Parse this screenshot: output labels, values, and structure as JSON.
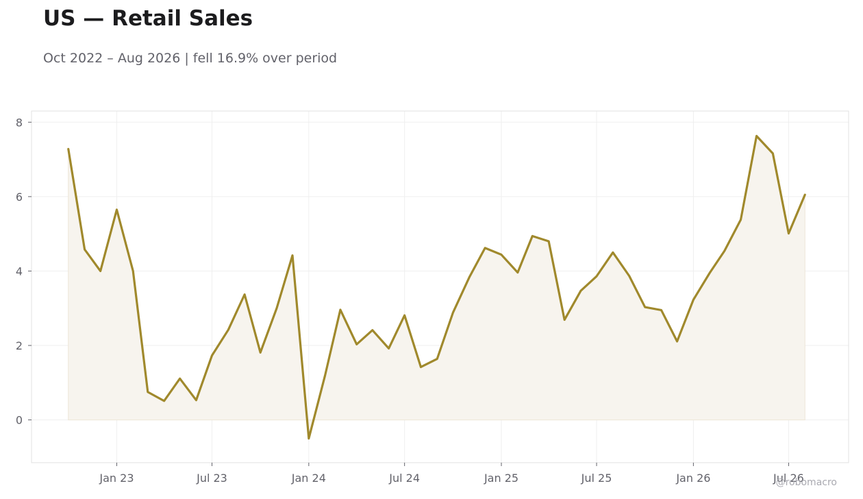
{
  "title": "US — Retail Sales",
  "subtitle": "Oct 2022 – Aug 2026 | fell 16.9% over period",
  "watermark": "@robomacro",
  "colors": {
    "line": "#A0892C",
    "fill": "#F7F4EE",
    "grid": "#EFEFEF",
    "frame": "#E2E2E2",
    "text": "#62626A"
  },
  "chart_data": {
    "type": "area",
    "title": "US — Retail Sales",
    "subtitle": "Oct 2022 – Aug 2026 | fell 16.9% over period",
    "xlabel": "",
    "ylabel": "",
    "ylim": [
      -1.15,
      8.3
    ],
    "xlim": [
      "2022-07-23",
      "2026-10-23"
    ],
    "grid": true,
    "legend": "none",
    "y_ticks": [
      0,
      2,
      4,
      6,
      8
    ],
    "x_ticks": [
      {
        "date": "2023-01-01",
        "label": "Jan 23"
      },
      {
        "date": "2023-07-01",
        "label": "Jul 23"
      },
      {
        "date": "2024-01-01",
        "label": "Jan 24"
      },
      {
        "date": "2024-07-01",
        "label": "Jul 24"
      },
      {
        "date": "2025-01-01",
        "label": "Jan 25"
      },
      {
        "date": "2025-07-01",
        "label": "Jul 25"
      },
      {
        "date": "2026-01-01",
        "label": "Jan 26"
      },
      {
        "date": "2026-07-01",
        "label": "Jul 26"
      }
    ],
    "series": [
      {
        "x": [
          "2022-10-01",
          "2022-11-01",
          "2022-12-01",
          "2023-01-01",
          "2023-02-01",
          "2023-03-01",
          "2023-04-01",
          "2023-05-01",
          "2023-06-01",
          "2023-07-01",
          "2023-08-01",
          "2023-09-01",
          "2023-10-01",
          "2023-11-01",
          "2023-12-01",
          "2024-01-01",
          "2024-02-01",
          "2024-03-01",
          "2024-04-01",
          "2024-05-01",
          "2024-06-01",
          "2024-07-01",
          "2024-08-01",
          "2024-09-01",
          "2024-10-01",
          "2024-11-01",
          "2024-12-01",
          "2025-01-01",
          "2025-02-01",
          "2025-03-01",
          "2025-04-01",
          "2025-05-01",
          "2025-06-01",
          "2025-07-01",
          "2025-08-01",
          "2025-09-01",
          "2025-10-01",
          "2025-11-01",
          "2025-12-01",
          "2026-01-01",
          "2026-02-01",
          "2026-03-01",
          "2026-04-01",
          "2026-05-01",
          "2026-06-01",
          "2026-07-01",
          "2026-08-01"
        ],
        "values": [
          7.28,
          4.58,
          4.0,
          5.65,
          4.0,
          0.75,
          0.51,
          1.11,
          0.53,
          1.73,
          2.42,
          3.37,
          1.81,
          3.0,
          4.42,
          -0.5,
          1.2,
          2.96,
          2.03,
          2.41,
          1.92,
          2.81,
          1.42,
          1.64,
          2.88,
          3.83,
          4.62,
          4.44,
          3.96,
          4.94,
          4.8,
          2.69,
          3.47,
          3.86,
          4.5,
          3.87,
          3.03,
          2.95,
          2.11,
          3.23,
          3.95,
          4.54,
          5.38,
          7.63,
          7.16,
          5.01,
          6.05
        ]
      }
    ]
  }
}
